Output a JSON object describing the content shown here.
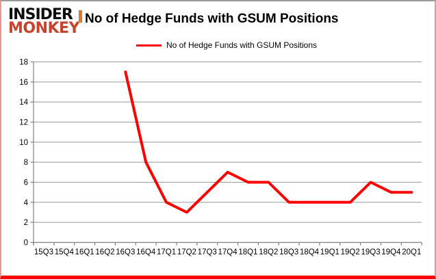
{
  "logo": {
    "line1": "INSIDER",
    "line2": "MONKEY"
  },
  "title": "No of Hedge Funds with GSUM Positions",
  "legend": {
    "label": "No of Hedge Funds with GSUM Positions",
    "line_color": "#ff0000"
  },
  "colors": {
    "series_line": "#ff0000",
    "gridline": "#999999",
    "axis": "#808080",
    "tick_label": "#000000",
    "logo_red": "#c8432d",
    "logo_mark_orange": "#e2762f",
    "frame_bottom_red": "#fb0000"
  },
  "chart_data": {
    "type": "line",
    "title": "No of Hedge Funds with GSUM Positions",
    "xlabel": "",
    "ylabel": "",
    "categories": [
      "15Q3",
      "15Q4",
      "16Q1",
      "16Q2",
      "16Q3",
      "16Q4",
      "17Q1",
      "17Q2",
      "17Q3",
      "17Q4",
      "18Q1",
      "18Q2",
      "18Q3",
      "18Q4",
      "19Q1",
      "19Q2",
      "19Q3",
      "19Q4",
      "20Q1"
    ],
    "series": [
      {
        "name": "No of Hedge Funds with GSUM Positions",
        "values": [
          null,
          null,
          null,
          null,
          17,
          8,
          4,
          3,
          5,
          7,
          6,
          6,
          4,
          4,
          4,
          4,
          6,
          5,
          5
        ]
      }
    ],
    "ylim": [
      0,
      18
    ],
    "ytick_step": 2,
    "grid": true,
    "legend_position": "top-center",
    "line_color": "#ff0000"
  }
}
